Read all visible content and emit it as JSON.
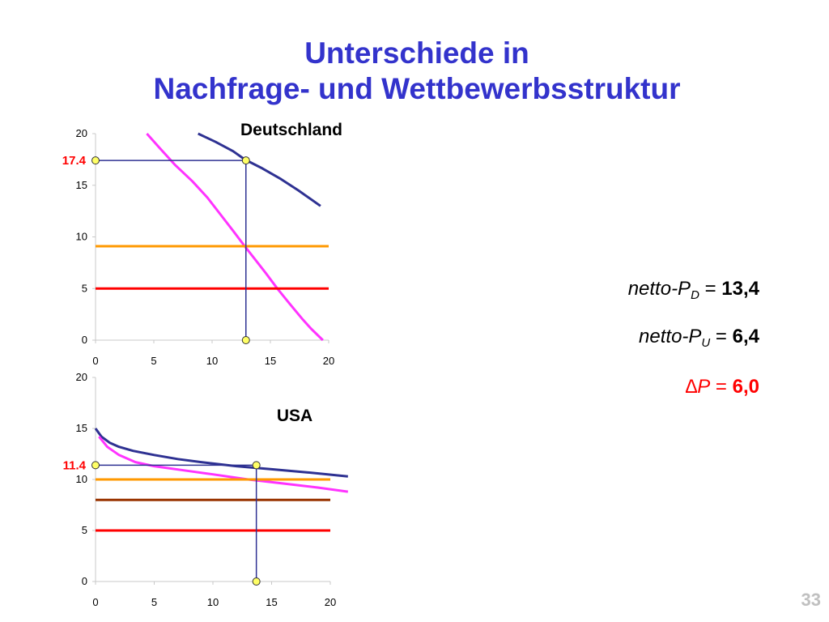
{
  "title": {
    "line1": "Unterschiede in",
    "line2": "Nachfrage- und Wettbewerbsstruktur"
  },
  "colors": {
    "demand": "#2e3192",
    "marginal_revenue": "#ff33ff",
    "cost_orange": "#ff9900",
    "cost_red": "#ff0000",
    "cost_brown": "#993300",
    "guide": "#2e3192",
    "marker": "#ffff66",
    "title": "#3333cc"
  },
  "equations": {
    "pd": {
      "prefix": "netto-P",
      "sub": "D",
      "op": " = ",
      "value": "13,4"
    },
    "pu": {
      "prefix": "netto-P",
      "sub": "U",
      "op": " = ",
      "value": "6,4"
    },
    "delta": {
      "prefix": "∆P",
      "op": " = ",
      "value": "6,0"
    }
  },
  "slide_number": "33",
  "chart_data": [
    {
      "type": "line",
      "title": "Deutschland",
      "xlabel": "",
      "ylabel": "",
      "xlim": [
        0,
        20
      ],
      "ylim": [
        0,
        20
      ],
      "x_ticks": [
        "0",
        "5",
        "10",
        "15",
        "20"
      ],
      "y_ticks": [
        "0",
        "5",
        "10",
        "15",
        "20"
      ],
      "grid": false,
      "series": [
        {
          "role": "demand",
          "x": [
            8.8,
            10.3,
            11.8,
            12.8,
            14.2,
            15.9,
            17.4,
            19.3
          ],
          "y": [
            20,
            19.2,
            18.3,
            17.5,
            16.7,
            15.6,
            14.5,
            13
          ]
        },
        {
          "role": "marginal_revenue",
          "x": [
            4.4,
            5.5,
            6.8,
            8.3,
            9.6,
            10.7,
            11.8,
            12.8,
            13.7,
            14.6,
            15.6,
            16.6,
            17.7,
            18.5,
            19.5
          ],
          "y": [
            20,
            18.6,
            17,
            15.4,
            13.8,
            12.2,
            10.6,
            9.1,
            7.8,
            6.5,
            5,
            3.6,
            2.1,
            1.1,
            0
          ]
        },
        {
          "role": "cost_orange",
          "x": [
            0,
            20
          ],
          "y": [
            9.1,
            9.1
          ]
        },
        {
          "role": "cost_red",
          "x": [
            0,
            20
          ],
          "y": [
            5,
            5
          ]
        }
      ],
      "guides": {
        "x": 12.9,
        "y": 17.4,
        "y_top": 17.4,
        "y_bottom": 0
      },
      "highlight_label": "17.4"
    },
    {
      "type": "line",
      "title": "USA",
      "xlabel": "",
      "ylabel": "",
      "xlim": [
        0,
        20
      ],
      "ylim": [
        0,
        20
      ],
      "x_ticks": [
        "0",
        "5",
        "10",
        "15",
        "20"
      ],
      "y_ticks": [
        "0",
        "5",
        "10",
        "15",
        "20"
      ],
      "grid": false,
      "series": [
        {
          "role": "demand",
          "x": [
            0,
            0.5,
            1.2,
            2,
            3.2,
            5,
            7,
            9,
            12,
            15,
            18,
            21.5
          ],
          "y": [
            15,
            14.2,
            13.6,
            13.2,
            12.8,
            12.4,
            12.0,
            11.7,
            11.3,
            11.0,
            10.7,
            10.3
          ]
        },
        {
          "role": "marginal_revenue",
          "x": [
            0.3,
            1,
            2,
            3.4,
            5,
            7.5,
            10,
            13,
            16,
            19,
            21.5
          ],
          "y": [
            14.2,
            13.2,
            12.4,
            11.7,
            11.3,
            10.9,
            10.5,
            10.0,
            9.6,
            9.2,
            8.8
          ]
        },
        {
          "role": "cost_orange",
          "x": [
            0,
            20
          ],
          "y": [
            10,
            10
          ]
        },
        {
          "role": "cost_brown",
          "x": [
            0,
            20
          ],
          "y": [
            8,
            8
          ]
        },
        {
          "role": "cost_red",
          "x": [
            0,
            20
          ],
          "y": [
            5,
            5
          ]
        }
      ],
      "guides": {
        "x": 13.7,
        "y": 11.4,
        "y_top": 11.4,
        "y_bottom": 0
      },
      "highlight_label": "11.4"
    }
  ]
}
